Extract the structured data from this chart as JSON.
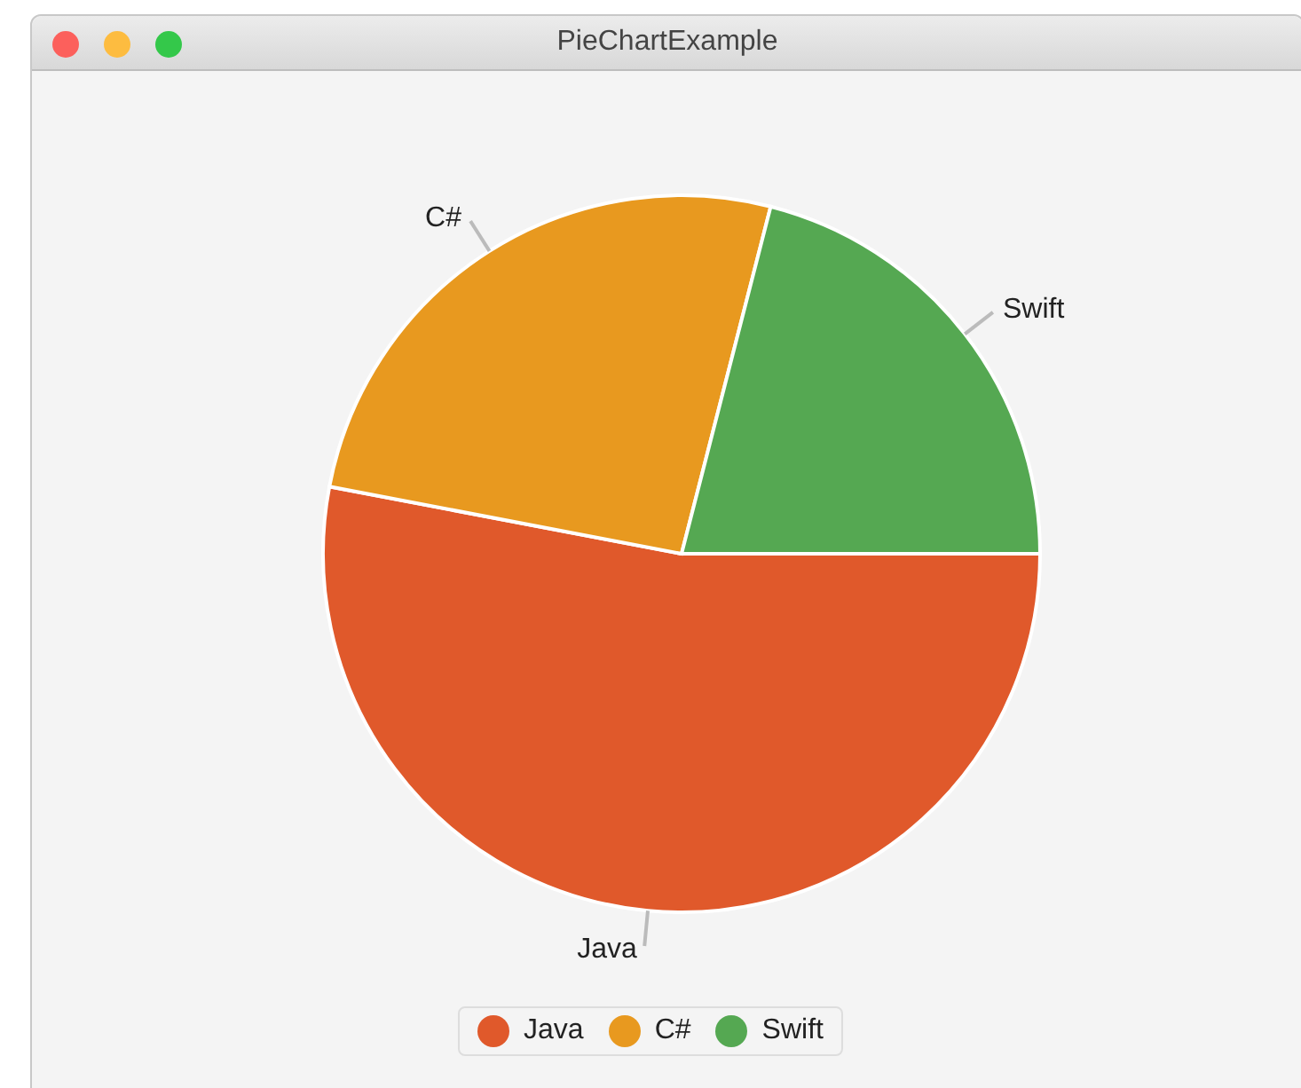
{
  "chart_data": {
    "type": "pie",
    "title": "PieChartExample",
    "categories": [
      "Java",
      "C#",
      "Swift"
    ],
    "values": [
      53,
      26,
      21
    ],
    "colors": [
      "#e0592b",
      "#e8991f",
      "#55a852"
    ],
    "legend": "bottom"
  }
}
